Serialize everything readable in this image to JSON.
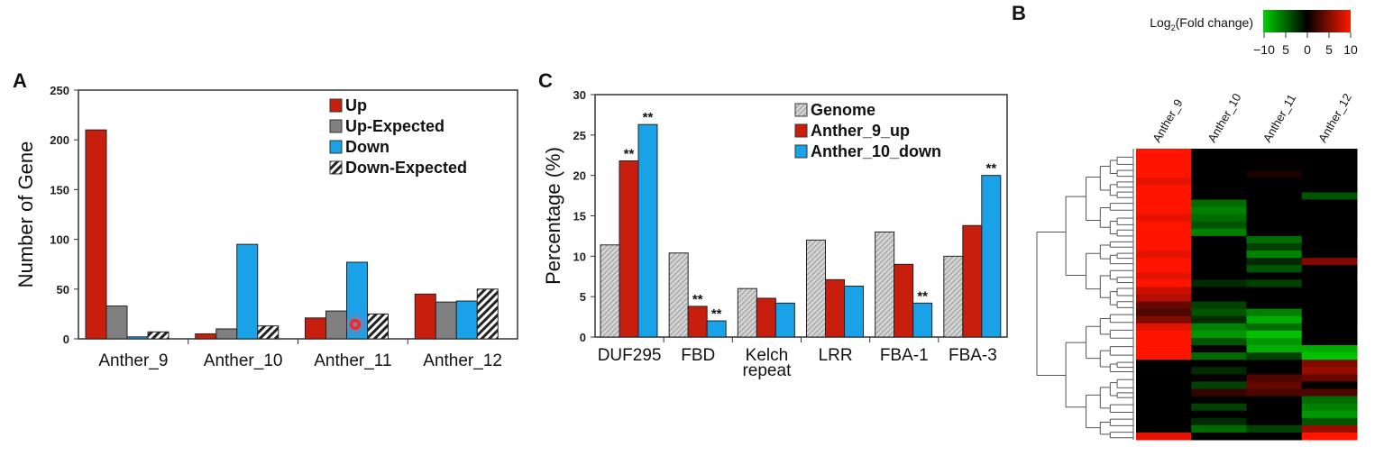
{
  "panels": {
    "a": "A",
    "b": "B",
    "c": "C"
  },
  "chart_data": [
    {
      "id": "A",
      "type": "bar",
      "ylabel": "Number of Gene",
      "ylim": [
        0,
        250
      ],
      "yticks": [
        0,
        50,
        100,
        150,
        200,
        250
      ],
      "categories": [
        "Anther_9",
        "Anther_10",
        "Anther_11",
        "Anther_12"
      ],
      "legend_position": "top-right",
      "series": [
        {
          "name": "Up",
          "color": "#c81e0e",
          "pattern": "solid",
          "values": [
            210,
            5,
            21,
            45
          ]
        },
        {
          "name": "Up-Expected",
          "color": "#808080",
          "pattern": "solid",
          "values": [
            33,
            10,
            28,
            37
          ]
        },
        {
          "name": "Down",
          "color": "#19a2e8",
          "pattern": "solid",
          "values": [
            2,
            95,
            77,
            38
          ]
        },
        {
          "name": "Down-Expected",
          "color": "#ffffff",
          "pattern": "hatch",
          "values": [
            7,
            13,
            25,
            50
          ]
        }
      ]
    },
    {
      "id": "C",
      "type": "bar",
      "ylabel": "Percentage (%)",
      "ylim": [
        0,
        30
      ],
      "yticks": [
        0,
        5,
        10,
        15,
        20,
        25,
        30
      ],
      "categories": [
        "DUF295",
        "FBD",
        "Kelch repeat",
        "LRR",
        "FBA-1",
        "FBA-3"
      ],
      "legend_position": "top-right",
      "significance_mark": "**",
      "series": [
        {
          "name": "Genome",
          "color": "#c8c8c8",
          "pattern": "hatch-light",
          "values": [
            11.4,
            10.4,
            6.0,
            12.0,
            13.0,
            10.0
          ],
          "significant": [
            false,
            false,
            false,
            false,
            false,
            false
          ]
        },
        {
          "name": "Anther_9_up",
          "color": "#c81e0e",
          "pattern": "solid",
          "values": [
            21.8,
            3.8,
            4.8,
            7.1,
            9.0,
            13.8
          ],
          "significant": [
            true,
            true,
            false,
            false,
            false,
            false
          ]
        },
        {
          "name": "Anther_10_down",
          "color": "#19a2e8",
          "pattern": "solid",
          "values": [
            26.3,
            2.0,
            4.2,
            6.3,
            4.2,
            20.0
          ],
          "significant": [
            true,
            true,
            false,
            false,
            true,
            true
          ]
        }
      ]
    },
    {
      "id": "B",
      "type": "heatmap",
      "colorbar_title": "Log2(Fold change)",
      "colorbar_title_main": "Log",
      "colorbar_title_sub": "2",
      "colorbar_title_rest": "(Fold change)",
      "colorbar_ticks": [
        "−10",
        "5",
        "0",
        "5",
        "10"
      ],
      "vrange": [
        -10,
        10
      ],
      "columns": [
        "Anther_9",
        "Anther_10",
        "Anther_11",
        "Anther_12"
      ],
      "rows": [
        [
          10,
          0,
          0,
          0
        ],
        [
          10,
          0,
          0,
          0
        ],
        [
          10,
          0,
          0,
          0
        ],
        [
          10,
          0,
          1,
          0
        ],
        [
          9,
          0,
          0,
          0
        ],
        [
          10,
          0,
          0,
          0
        ],
        [
          10,
          0,
          0,
          -4
        ],
        [
          10,
          -5,
          0,
          0
        ],
        [
          10,
          -6,
          0,
          0
        ],
        [
          9,
          -5,
          0,
          0
        ],
        [
          10,
          -4,
          0,
          0
        ],
        [
          10,
          -6,
          0,
          0
        ],
        [
          10,
          0,
          -5,
          0
        ],
        [
          10,
          0,
          -3,
          0
        ],
        [
          9,
          0,
          -6,
          0
        ],
        [
          10,
          0,
          -2,
          5
        ],
        [
          10,
          0,
          -4,
          0
        ],
        [
          9,
          0,
          0,
          0
        ],
        [
          10,
          -2,
          -3,
          0
        ],
        [
          8,
          0,
          0,
          0
        ],
        [
          7,
          0,
          0,
          0
        ],
        [
          4,
          -3,
          0,
          0
        ],
        [
          3,
          -4,
          -6,
          0
        ],
        [
          5,
          -2,
          -8,
          0
        ],
        [
          9,
          -6,
          -5,
          0
        ],
        [
          10,
          -7,
          -9,
          0
        ],
        [
          10,
          -4,
          -7,
          0
        ],
        [
          10,
          0,
          -8,
          -8
        ],
        [
          10,
          -5,
          -3,
          -9
        ],
        [
          0,
          0,
          0,
          5
        ],
        [
          0,
          -2,
          0,
          6
        ],
        [
          0,
          0,
          3,
          4
        ],
        [
          0,
          -3,
          4,
          0
        ],
        [
          0,
          2,
          3,
          3
        ],
        [
          0,
          0,
          0,
          -5
        ],
        [
          0,
          -3,
          0,
          -6
        ],
        [
          0,
          0,
          0,
          -7
        ],
        [
          0,
          -2,
          0,
          -4
        ],
        [
          0,
          -5,
          -3,
          6
        ],
        [
          9,
          0,
          0,
          10
        ]
      ]
    }
  ]
}
